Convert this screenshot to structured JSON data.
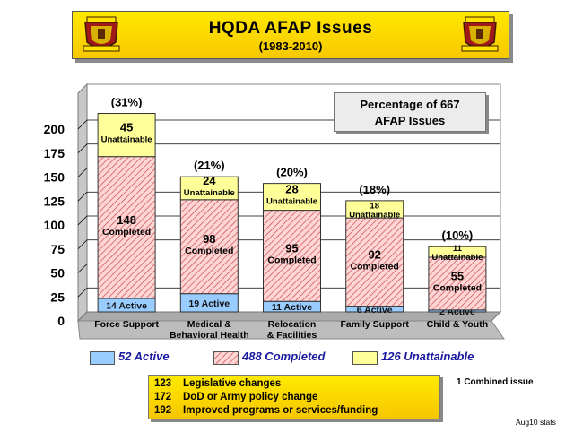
{
  "header": {
    "title": "HQDA   AFAP  Issues",
    "subtitle": "(1983-2010)",
    "emblem_icon": "army-crest-icon"
  },
  "info_box": {
    "line1": "Percentage of 667",
    "line2": "AFAP Issues"
  },
  "chart_data": {
    "type": "bar",
    "stacked": true,
    "categories": [
      "Force Support",
      "Medical & Behavioral Health",
      "Relocation & Facilities",
      "Family Support",
      "Child & Youth"
    ],
    "category_lines": [
      [
        "Force Support"
      ],
      [
        "Medical &",
        "Behavioral Health"
      ],
      [
        "Relocation",
        "& Facilities"
      ],
      [
        "Family Support"
      ],
      [
        "Child & Youth"
      ]
    ],
    "ylim": [
      0,
      200
    ],
    "yticks": [
      0,
      25,
      50,
      75,
      100,
      125,
      150,
      175,
      200
    ],
    "grid": true,
    "series": [
      {
        "key": "active",
        "values": [
          14,
          19,
          11,
          6,
          2
        ],
        "labels": [
          "14 Active",
          "19 Active",
          "11 Active",
          "6 Active",
          "2  Active"
        ],
        "color": "#99ccff"
      },
      {
        "key": "completed",
        "values": [
          148,
          98,
          95,
          92,
          55
        ],
        "labels": [
          "148",
          "98",
          "95",
          "92",
          "55"
        ],
        "word": "Completed",
        "color": "#ffd0d0",
        "hatch": "#cc5050"
      },
      {
        "key": "unattainable",
        "values": [
          45,
          24,
          28,
          18,
          11
        ],
        "labels": [
          "45",
          "24",
          "28",
          "18",
          "11"
        ],
        "word": "Unattainable",
        "color": "#ffff99"
      }
    ],
    "percentages": [
      "(31%)",
      "(21%)",
      "(20%)",
      "(18%)",
      "(10%)"
    ],
    "legend": [
      {
        "label": "52 Active",
        "color": "#99ccff"
      },
      {
        "label": "488 Completed",
        "color": "#ffd0d0"
      },
      {
        "label": "126 Unattainable",
        "color": "#ffff99"
      }
    ]
  },
  "breakdown": [
    {
      "num": "123",
      "text": "Legislative changes"
    },
    {
      "num": "172",
      "text": "DoD or Army policy change"
    },
    {
      "num": "192",
      "text": "Improved programs or services/funding"
    }
  ],
  "note": "1 Combined issue",
  "stats": "Aug10 stats"
}
